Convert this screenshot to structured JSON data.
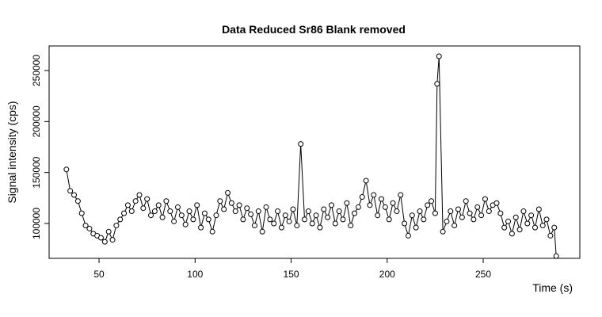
{
  "chart_data": {
    "type": "line",
    "title": "Data Reduced Sr86 Blank removed",
    "x_label": "Time (s)",
    "y_label": "Signal intensity (cps)",
    "color": "#000000",
    "markers": true,
    "xlim": [
      24,
      300.3
    ],
    "ylim": [
      65800,
      274100
    ],
    "xticks": [
      50,
      100,
      150,
      200,
      250
    ],
    "yticks": [
      100000,
      150000,
      200000,
      250000
    ],
    "x": [
      33,
      35,
      37,
      39,
      41,
      43,
      45,
      47,
      49,
      51,
      53,
      55,
      57,
      59,
      61,
      63,
      65,
      67,
      69,
      71,
      73,
      75,
      77,
      79,
      81,
      83,
      85,
      87,
      89,
      91,
      93,
      95,
      97,
      99,
      101,
      103,
      105,
      107,
      109,
      111,
      113,
      115,
      117,
      119,
      121,
      123,
      125,
      127,
      129,
      131,
      133,
      135,
      137,
      139,
      141,
      143,
      145,
      147,
      149,
      151,
      153,
      155,
      157,
      159,
      161,
      163,
      165,
      167,
      169,
      171,
      173,
      175,
      177,
      179,
      181,
      183,
      185,
      187,
      189,
      191,
      193,
      195,
      197,
      199,
      201,
      203,
      205,
      207,
      209,
      211,
      213,
      215,
      217,
      219,
      221,
      223,
      225,
      226,
      227,
      229,
      231,
      233,
      235,
      237,
      239,
      241,
      243,
      245,
      247,
      249,
      251,
      253,
      255,
      257,
      259,
      261,
      263,
      265,
      267,
      269,
      271,
      273,
      275,
      277,
      279,
      281,
      283,
      285,
      287,
      288
    ],
    "values": [
      153000,
      132000,
      128000,
      122000,
      110000,
      98000,
      95000,
      90000,
      88000,
      86000,
      82000,
      92000,
      84000,
      98000,
      104000,
      110000,
      118000,
      112000,
      122000,
      128000,
      115000,
      124000,
      108000,
      112000,
      118000,
      106000,
      122000,
      112000,
      102000,
      116000,
      108000,
      99000,
      112000,
      104000,
      118000,
      96000,
      110000,
      104000,
      92000,
      108000,
      122000,
      114000,
      130000,
      120000,
      112000,
      118000,
      104000,
      115000,
      109000,
      98000,
      112000,
      92000,
      116000,
      104000,
      100000,
      112000,
      96000,
      108000,
      102000,
      114000,
      98000,
      178000,
      104000,
      112000,
      100000,
      108000,
      96000,
      114000,
      106000,
      118000,
      100000,
      112000,
      104000,
      120000,
      98000,
      110000,
      116000,
      126000,
      142000,
      118000,
      128000,
      108000,
      124000,
      116000,
      104000,
      120000,
      112000,
      128000,
      100000,
      88000,
      108000,
      96000,
      112000,
      104000,
      118000,
      122000,
      110000,
      237000,
      264000,
      92000,
      102000,
      112000,
      98000,
      114000,
      106000,
      122000,
      110000,
      104000,
      116000,
      108000,
      124000,
      112000,
      118000,
      120000,
      110000,
      96000,
      102000,
      90000,
      106000,
      94000,
      112000,
      100000,
      108000,
      96000,
      114000,
      98000,
      104000,
      88000,
      96000,
      68000
    ]
  }
}
